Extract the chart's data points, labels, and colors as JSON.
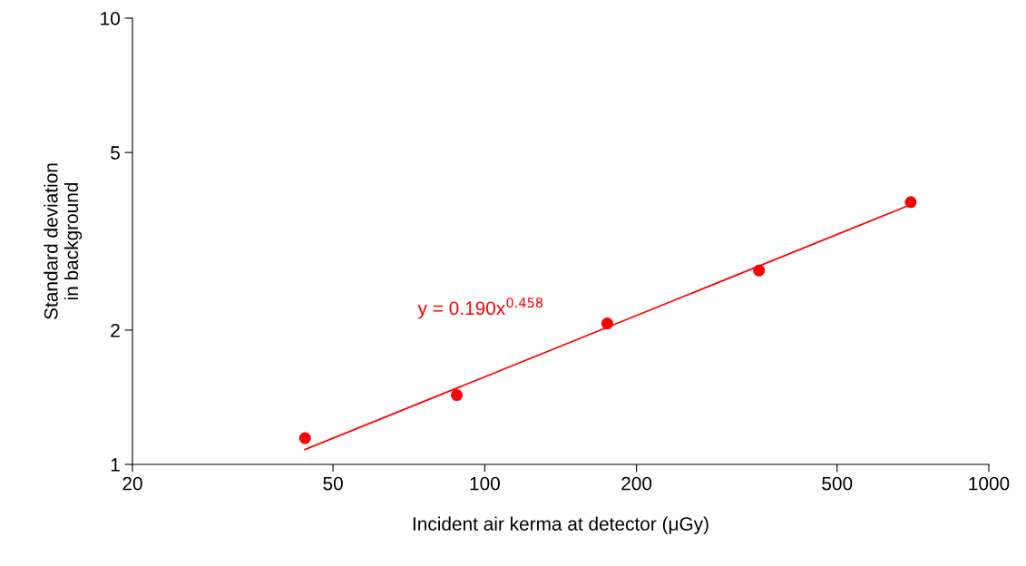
{
  "chart_data": {
    "type": "scatter",
    "xlabel": "Incident air kerma at detector (μGy)",
    "ylabel": "Standard deviation\nin background",
    "log": "xy",
    "xlim": [
      20,
      1000
    ],
    "xticks": [
      20,
      50,
      100,
      200,
      500,
      1000
    ],
    "ylim": [
      1,
      10
    ],
    "yticks": [
      1,
      2,
      5,
      10
    ],
    "grid": false,
    "legend": false,
    "marker": "circle",
    "series": [
      {
        "color": "#ff0000",
        "x": [
          44,
          88,
          175,
          350,
          700
        ],
        "values": [
          1.145,
          1.43,
          2.07,
          2.72,
          3.87
        ]
      },
      {
        "type": "line",
        "color": "#ff0000",
        "line_style": "solid",
        "marker": "none",
        "x": [
          44,
          700
        ],
        "values": [
          1.08,
          3.82
        ]
      }
    ],
    "annotations": [
      "y = 0.190x$^{0.458}$"
    ]
  }
}
